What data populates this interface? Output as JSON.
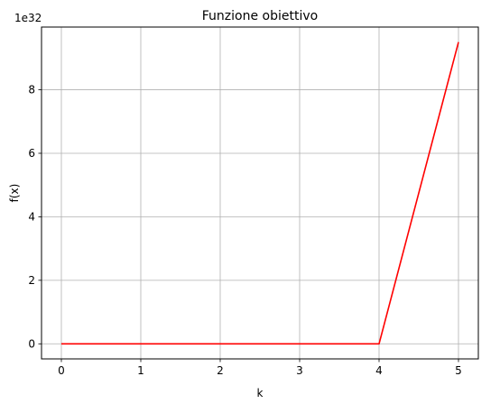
{
  "chart_data": {
    "type": "line",
    "title": "Funzione obiettivo",
    "xlabel": "k",
    "ylabel": "f(x)",
    "y_scale_label": "1e32",
    "x": [
      0,
      1,
      2,
      3,
      4,
      5
    ],
    "series": [
      {
        "values": [
          0,
          0,
          0,
          0,
          0,
          9.5
        ],
        "color": "#ff0000"
      }
    ],
    "xlim": [
      -0.25,
      5.25
    ],
    "ylim": [
      -0.475,
      9.975
    ],
    "x_ticks": [
      0,
      1,
      2,
      3,
      4,
      5
    ],
    "x_tick_labels": [
      "0",
      "1",
      "2",
      "3",
      "4",
      "5"
    ],
    "y_ticks": [
      0,
      2,
      4,
      6,
      8
    ],
    "y_tick_labels": [
      "0",
      "2",
      "4",
      "6",
      "8"
    ],
    "grid": true,
    "grid_color": "#b0b0b0"
  }
}
